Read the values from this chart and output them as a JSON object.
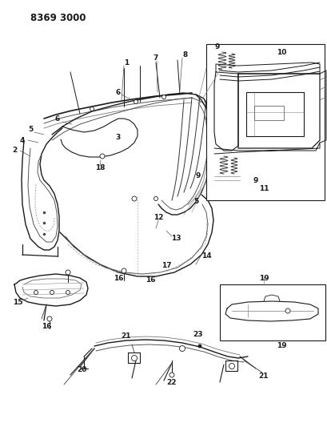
{
  "title": "8369 3000",
  "bg_color": "#ffffff",
  "lc": "#1a1a1a",
  "title_fontsize": 8.5,
  "label_fontsize": 6.5,
  "fig_width": 4.1,
  "fig_height": 5.33,
  "dpi": 100
}
